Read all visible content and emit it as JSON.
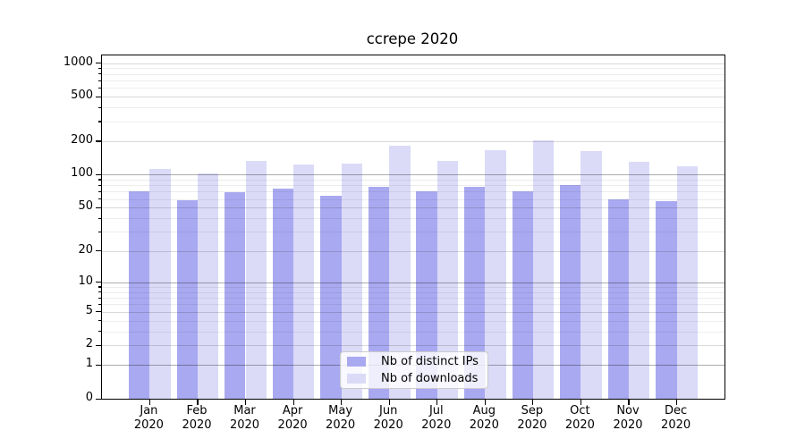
{
  "title": "ccrepe 2020",
  "chart_data": {
    "type": "bar",
    "title": "ccrepe 2020",
    "x_tick_year": "2020",
    "categories": [
      "Jan",
      "Feb",
      "Mar",
      "Apr",
      "May",
      "Jun",
      "Jul",
      "Aug",
      "Sep",
      "Oct",
      "Nov",
      "Dec"
    ],
    "series": [
      {
        "name": "Nb of distinct IPs",
        "color": "#a9a9f1",
        "values": [
          70,
          59,
          69,
          75,
          64,
          78,
          71,
          78,
          71,
          81,
          60,
          57
        ]
      },
      {
        "name": "Nb of downloads",
        "color": "#dbdbf8",
        "values": [
          112,
          103,
          133,
          124,
          125,
          181,
          134,
          167,
          203,
          163,
          131,
          119
        ]
      }
    ],
    "y_ticks": [
      0,
      1,
      2,
      5,
      10,
      20,
      50,
      100,
      200,
      500,
      1000
    ],
    "y_minor_ticks": [
      3,
      4,
      6,
      7,
      8,
      9,
      30,
      40,
      60,
      70,
      80,
      90,
      300,
      400,
      600,
      700,
      800,
      900
    ],
    "y_scale": "log10(1+x)",
    "ylim": [
      0,
      1180
    ],
    "grid": true,
    "legend": {
      "position": "lower center",
      "items": [
        "Nb of distinct IPs",
        "Nb of downloads"
      ]
    }
  }
}
